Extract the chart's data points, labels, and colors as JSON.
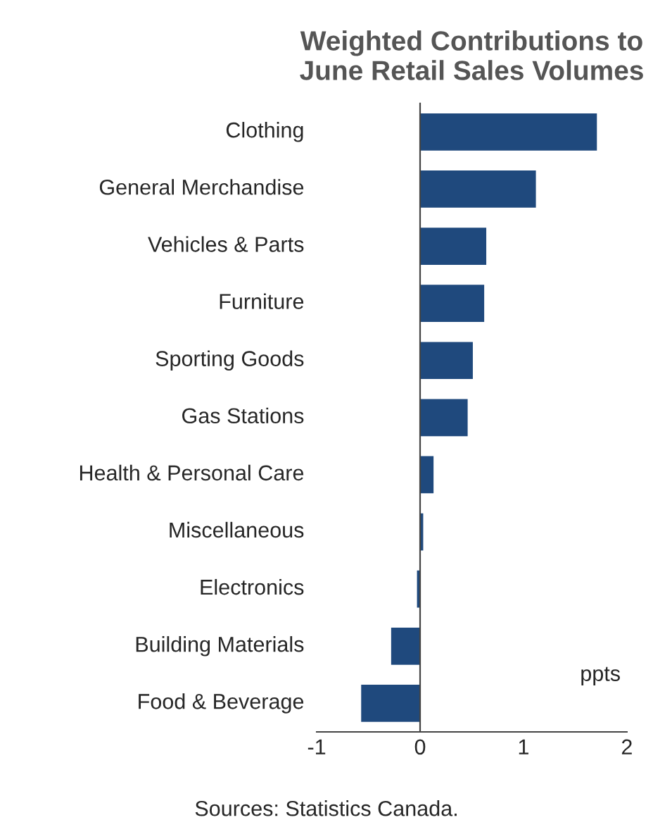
{
  "chart_data": {
    "type": "bar",
    "orientation": "horizontal",
    "title": "Weighted Contributions to\nJune Retail Sales Volumes",
    "categories": [
      "Clothing",
      "General Merchandise",
      "Vehicles & Parts",
      "Furniture",
      "Sporting Goods",
      "Gas Stations",
      "Health & Personal Care",
      "Miscellaneous",
      "Electronics",
      "Building Materials",
      "Food & Beverage"
    ],
    "values": [
      1.71,
      1.12,
      0.64,
      0.62,
      0.51,
      0.46,
      0.13,
      0.03,
      -0.03,
      -0.28,
      -0.57
    ],
    "color": "#1f497d",
    "xlim": [
      -1,
      2
    ],
    "xticks": [
      -1,
      0,
      1,
      2
    ],
    "xlabel": "ppts",
    "annotations": [
      "Sources: Statistics Canada."
    ]
  }
}
